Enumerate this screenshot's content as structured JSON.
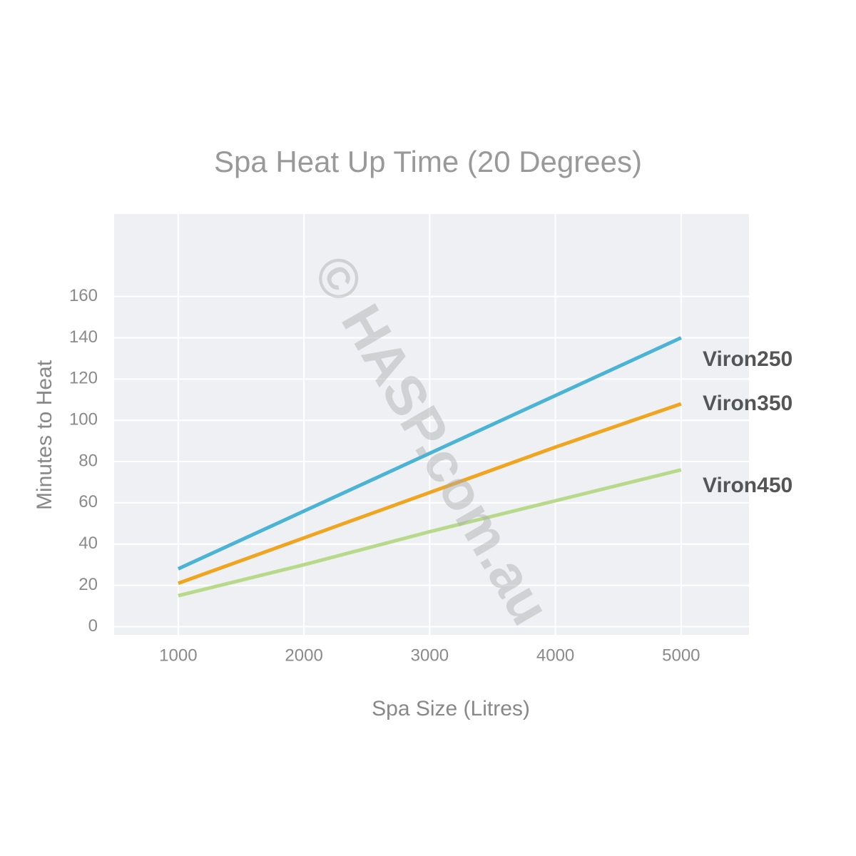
{
  "chart_data": {
    "type": "line",
    "title": "Spa Heat Up Time (20 Degrees)",
    "x_label": "Spa Size (Litres)",
    "y_label": "Minutes to Heat",
    "watermark": "© HASP.com.au",
    "x": [
      1000,
      2000,
      3000,
      4000,
      5000
    ],
    "series": [
      {
        "name": "Viron250",
        "color": "#4bb3d3",
        "values": [
          28,
          56,
          84,
          112,
          140
        ]
      },
      {
        "name": "Viron350",
        "color": "#f0a520",
        "values": [
          21,
          43,
          65,
          87,
          108
        ]
      },
      {
        "name": "Viron450",
        "color": "#b9d98a",
        "values": [
          15,
          30,
          46,
          61,
          76
        ]
      }
    ],
    "xlim": [
      490,
      5540
    ],
    "xticks": [
      1000,
      2000,
      3000,
      4000,
      5000
    ],
    "ylim": [
      -4,
      200
    ],
    "yticks": [
      0,
      20,
      40,
      60,
      80,
      100,
      120,
      140,
      160
    ],
    "grid": true
  }
}
